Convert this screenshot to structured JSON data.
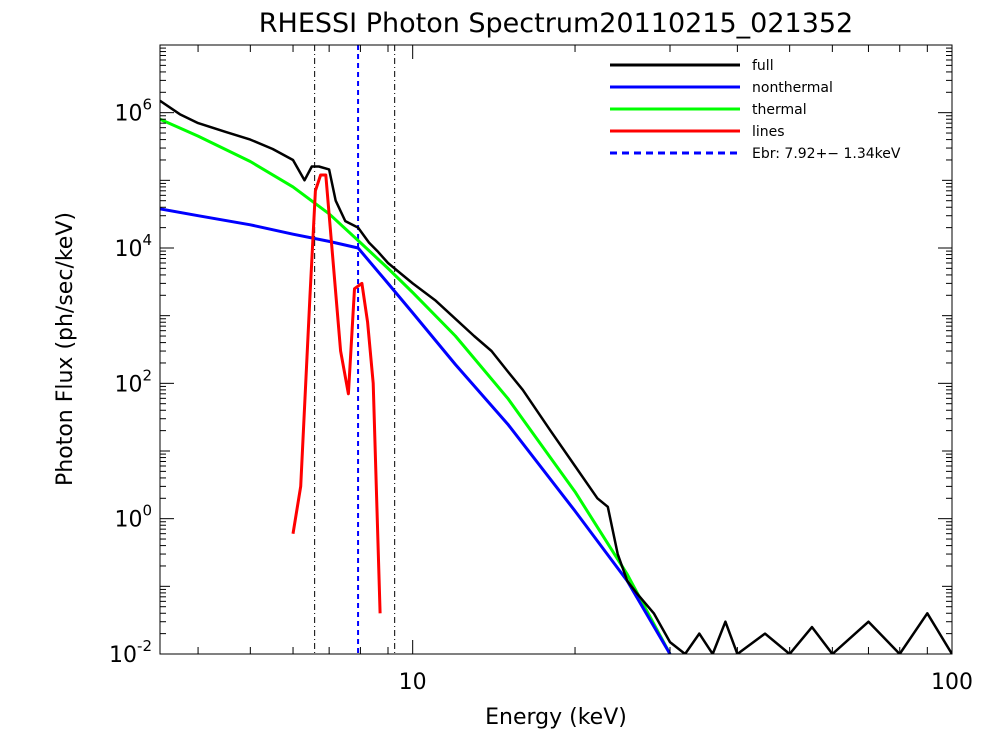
{
  "chart_data": {
    "type": "line",
    "title": "RHESSI Photon Spectrum20110215_021352",
    "xlabel": "Energy (keV)",
    "ylabel": "Photon Flux (ph/sec/keV)",
    "xscale": "log",
    "yscale": "log",
    "xlim": [
      3.4,
      100
    ],
    "ylim": [
      0.01,
      10000000
    ],
    "x_ticks": [
      {
        "value": 10,
        "label": "10"
      },
      {
        "value": 100,
        "label": "100"
      }
    ],
    "y_ticks": [
      {
        "value": 0.01,
        "base": "10",
        "exp": "-2"
      },
      {
        "value": 1,
        "base": "10",
        "exp": "0"
      },
      {
        "value": 100,
        "base": "10",
        "exp": "2"
      },
      {
        "value": 10000,
        "base": "10",
        "exp": "4"
      },
      {
        "value": 1000000,
        "base": "10",
        "exp": "6"
      }
    ],
    "legend_position": "top-right",
    "legend": [
      {
        "label": "full",
        "color": "#000000",
        "style": "solid"
      },
      {
        "label": "nonthermal",
        "color": "#0000ff",
        "style": "solid"
      },
      {
        "label": "thermal",
        "color": "#00ff00",
        "style": "solid"
      },
      {
        "label": "lines",
        "color": "#ff0000",
        "style": "solid"
      },
      {
        "label": "Ebr:   7.92+−  1.34keV",
        "color": "#0000ff",
        "style": "dashed"
      }
    ],
    "vertical_lines": [
      {
        "x": 6.58,
        "color": "#000000",
        "style": "dashdot"
      },
      {
        "x": 7.92,
        "color": "#0000ff",
        "style": "dashed"
      },
      {
        "x": 9.26,
        "color": "#000000",
        "style": "dashdot"
      }
    ],
    "series": [
      {
        "name": "thermal",
        "color": "#00ff00",
        "x": [
          3.4,
          4,
          5,
          6,
          7,
          8,
          9,
          10,
          12,
          15,
          18,
          20,
          25,
          30
        ],
        "y": [
          800000,
          450000,
          190000,
          80000,
          32000,
          12000,
          5000,
          2200,
          500,
          60,
          8,
          2.5,
          0.15,
          0.01
        ]
      },
      {
        "name": "nonthermal",
        "color": "#0000ff",
        "x": [
          3.4,
          4,
          5,
          6,
          7,
          7.92,
          9,
          10,
          12,
          15,
          20,
          25,
          30
        ],
        "y": [
          38000,
          30000,
          22000,
          16000,
          12500,
          10000,
          3000,
          1100,
          190,
          25,
          1.3,
          0.12,
          0.01
        ]
      },
      {
        "name": "lines",
        "color": "#ff0000",
        "x": [
          6.0,
          6.2,
          6.45,
          6.6,
          6.75,
          6.9,
          7.1,
          7.35,
          7.6,
          7.8,
          8.05,
          8.25,
          8.45,
          8.7
        ],
        "y": [
          0.6,
          3,
          2000,
          70000,
          120000,
          120000,
          8000,
          300,
          70,
          2500,
          3000,
          800,
          100,
          0.04
        ]
      },
      {
        "name": "full",
        "color": "#000000",
        "x": [
          3.4,
          3.7,
          4,
          4.5,
          5,
          5.5,
          6,
          6.3,
          6.5,
          6.7,
          7.0,
          7.2,
          7.5,
          7.92,
          8.3,
          8.6,
          9,
          9.5,
          10,
          11,
          12,
          13,
          14,
          15,
          16,
          18,
          20,
          22,
          23,
          24,
          25,
          26,
          28,
          30,
          32,
          34,
          36,
          38,
          40,
          45,
          50,
          55,
          60,
          70,
          80,
          90,
          100
        ],
        "y": [
          1500000,
          950000,
          700000,
          520000,
          400000,
          290000,
          200000,
          100000,
          160000,
          160000,
          145000,
          50000,
          25000,
          20000,
          12000,
          9000,
          6000,
          4200,
          3000,
          1700,
          900,
          500,
          300,
          150,
          80,
          20,
          6,
          2,
          1.5,
          0.3,
          0.12,
          0.08,
          0.04,
          0.015,
          0.01,
          0.02,
          0.01,
          0.03,
          0.01,
          0.02,
          0.01,
          0.025,
          0.01,
          0.03,
          0.01,
          0.04,
          0.01
        ]
      }
    ]
  }
}
